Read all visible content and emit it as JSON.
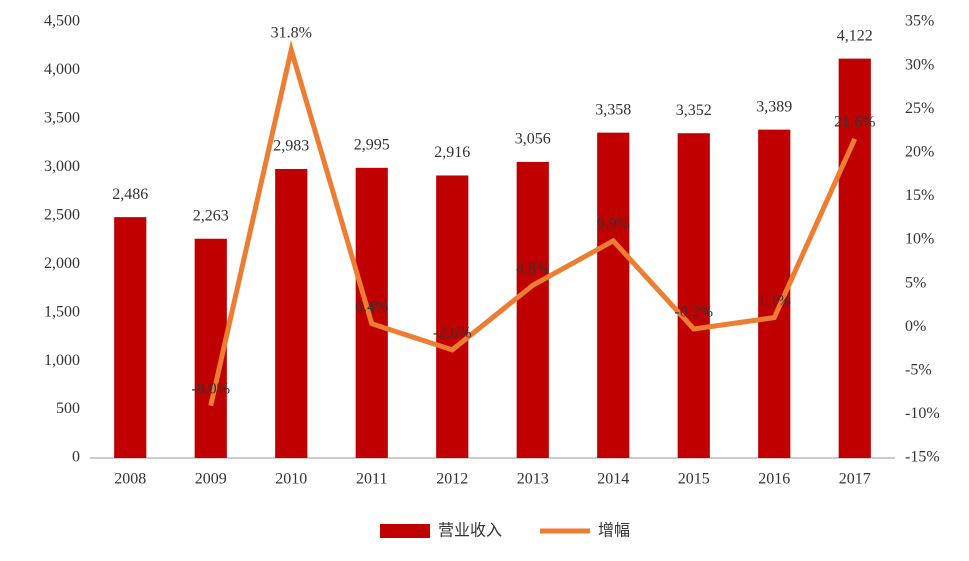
{
  "chart_data": {
    "type": "bar_line",
    "categories": [
      "2008",
      "2009",
      "2010",
      "2011",
      "2012",
      "2013",
      "2014",
      "2015",
      "2016",
      "2017"
    ],
    "series": [
      {
        "name": "营业收入",
        "color": "#c00000",
        "type": "bar",
        "values": [
          2486,
          2263,
          2983,
          2995,
          2916,
          3056,
          3358,
          3352,
          3389,
          4122
        ],
        "value_labels": [
          "2,486",
          "2,263",
          "2,983",
          "2,995",
          "2,916",
          "3,056",
          "3,358",
          "3,352",
          "3,389",
          "4,122"
        ]
      },
      {
        "name": "增幅",
        "color": "#ed7d31",
        "type": "line",
        "axis": "y2",
        "values": [
          null,
          -9.0,
          31.8,
          0.4,
          -2.6,
          4.8,
          9.9,
          -0.2,
          1.1,
          21.6
        ],
        "value_labels": [
          null,
          "-9.0%",
          "31.8%",
          "0.4%",
          "-2.6%",
          "4.8%",
          "9.9%",
          "-0.2%",
          "1.1%",
          "21.6%"
        ]
      }
    ],
    "ylim": [
      0,
      4500
    ],
    "yticks": [
      0,
      500,
      {
        "value": 1000,
        "label": "1,000"
      },
      {
        "value": 1500,
        "label": "1,500"
      },
      {
        "value": 2000,
        "label": "2,000"
      },
      {
        "value": 2500,
        "label": "2,500"
      },
      {
        "value": 3000,
        "label": "3,000"
      },
      {
        "value": 3500,
        "label": "3,500"
      },
      {
        "value": 4000,
        "label": "4,000"
      },
      {
        "value": 4500,
        "label": "4,500"
      }
    ],
    "y2lim": [
      -15,
      35
    ],
    "y2ticks": [
      {
        "value": -15,
        "label": "-15%"
      },
      {
        "value": -10,
        "label": "-10%"
      },
      {
        "value": -5,
        "label": "-5%"
      },
      {
        "value": 0,
        "label": "0%"
      },
      {
        "value": 5,
        "label": "5%"
      },
      {
        "value": 10,
        "label": "10%"
      },
      {
        "value": 15,
        "label": "15%"
      },
      {
        "value": 20,
        "label": "20%"
      },
      {
        "value": 25,
        "label": "25%"
      },
      {
        "value": 30,
        "label": "30%"
      },
      {
        "value": 35,
        "label": "35%"
      }
    ],
    "legend": "bottom"
  }
}
